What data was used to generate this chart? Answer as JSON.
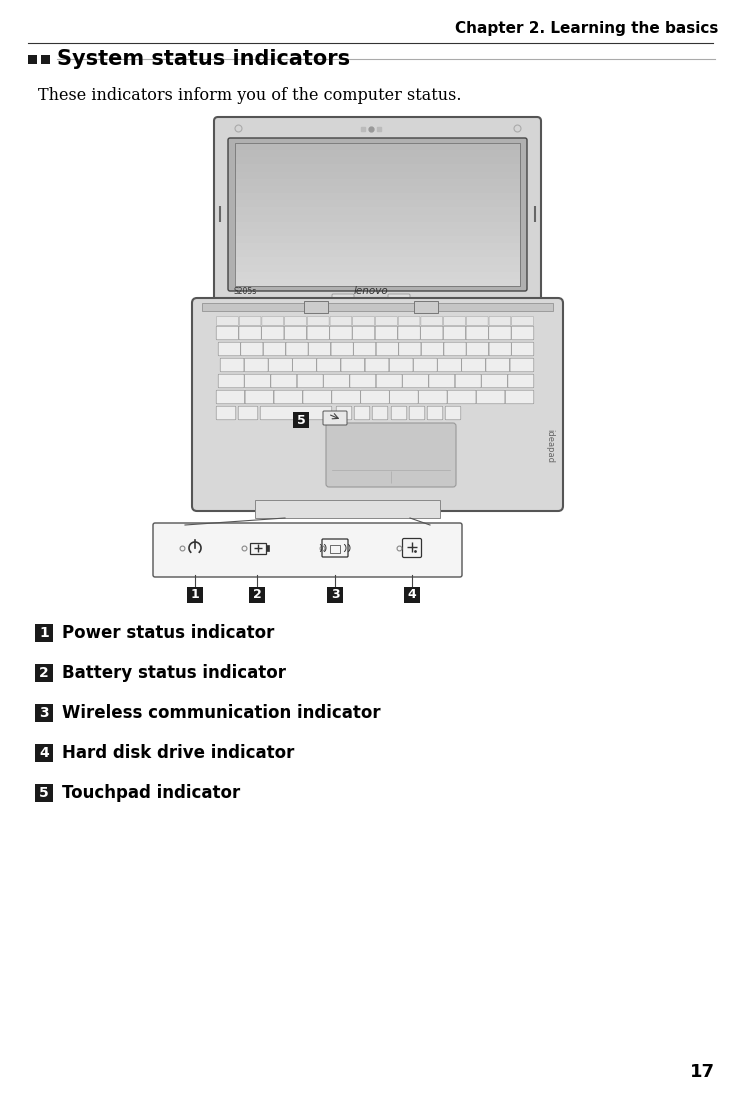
{
  "title_right": "Chapter 2. Learning the basics",
  "section_title": "System status indicators",
  "description": "These indicators inform you of the computer status.",
  "items": [
    {
      "num": "1",
      "text": "Power status indicator"
    },
    {
      "num": "2",
      "text": "Battery status indicator"
    },
    {
      "num": "3",
      "text": "Wireless communication indicator"
    },
    {
      "num": "4",
      "text": "Hard disk drive indicator"
    },
    {
      "num": "5",
      "text": "Touchpad indicator"
    }
  ],
  "page_number": "17",
  "bg_color": "#ffffff",
  "text_color": "#000000",
  "badge_bg": "#1a1a1a",
  "badge_fg": "#ffffff",
  "laptop_outer": "#d0d0d0",
  "laptop_border": "#555555",
  "screen_color": "#c8c8c8",
  "key_color": "#eeeeee",
  "key_border": "#888888"
}
